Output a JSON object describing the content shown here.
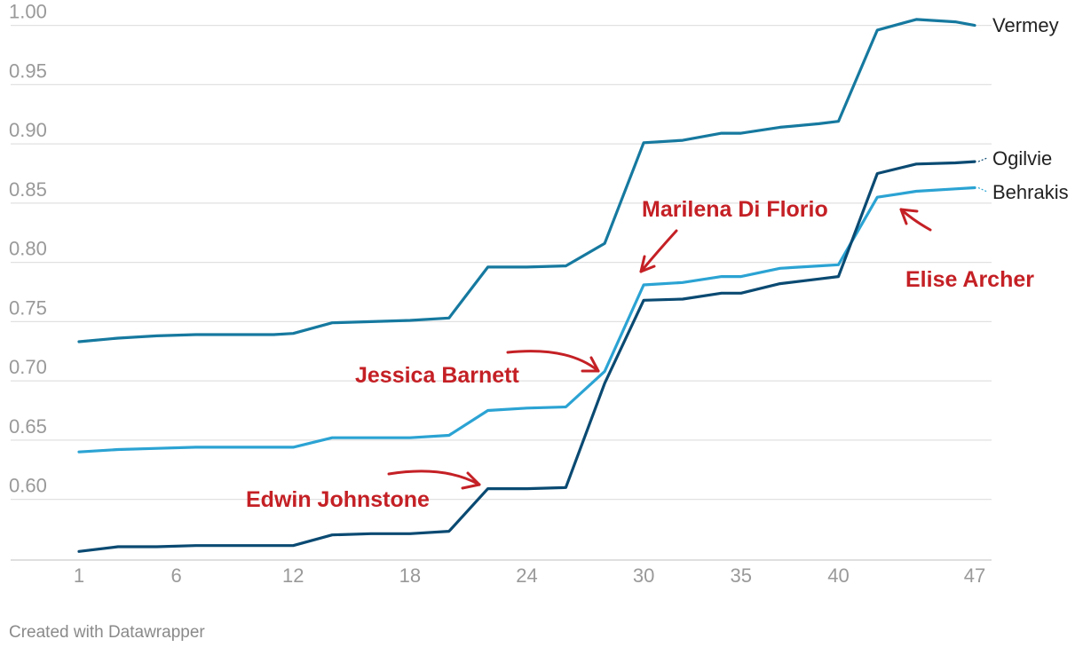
{
  "chart_data": {
    "type": "line",
    "x": [
      1,
      3,
      5,
      7,
      9,
      11,
      12,
      14,
      16,
      18,
      20,
      22,
      24,
      26,
      28,
      30,
      32,
      34,
      35,
      37,
      39,
      40,
      42,
      44,
      46,
      47
    ],
    "xticks": [
      1,
      6,
      12,
      18,
      24,
      30,
      35,
      40,
      47
    ],
    "xtick_labels": [
      "1",
      "6",
      "12",
      "18",
      "24",
      "30",
      "35",
      "40",
      "47"
    ],
    "yticks": [
      0.6,
      0.65,
      0.7,
      0.75,
      0.8,
      0.85,
      0.9,
      0.95,
      1.0
    ],
    "ytick_labels": [
      "0.60",
      "0.65",
      "0.70",
      "0.75",
      "0.80",
      "0.85",
      "0.90",
      "0.95",
      "1.00"
    ],
    "ylim": [
      0.555,
      1.005
    ],
    "grid": true,
    "series": [
      {
        "name": "Vermey",
        "color": "#16799f",
        "values": [
          0.733,
          0.736,
          0.738,
          0.739,
          0.739,
          0.739,
          0.74,
          0.749,
          0.75,
          0.751,
          0.753,
          0.796,
          0.796,
          0.797,
          0.816,
          0.901,
          0.903,
          0.909,
          0.909,
          0.914,
          0.917,
          0.919,
          0.996,
          1.005,
          1.003,
          1.0
        ]
      },
      {
        "name": "Ogilvie",
        "color": "#0a4a72",
        "values": [
          0.556,
          0.56,
          0.56,
          0.561,
          0.561,
          0.561,
          0.561,
          0.57,
          0.571,
          0.571,
          0.573,
          0.609,
          0.609,
          0.61,
          0.698,
          0.768,
          0.769,
          0.774,
          0.774,
          0.782,
          0.786,
          0.788,
          0.875,
          0.883,
          0.884,
          0.885
        ]
      },
      {
        "name": "Behrakis",
        "color": "#2ba3d3",
        "values": [
          0.64,
          0.642,
          0.643,
          0.644,
          0.644,
          0.644,
          0.644,
          0.652,
          0.652,
          0.652,
          0.654,
          0.675,
          0.677,
          0.678,
          0.708,
          0.781,
          0.783,
          0.788,
          0.788,
          0.795,
          0.797,
          0.798,
          0.855,
          0.86,
          0.862,
          0.863
        ]
      }
    ],
    "annotations": [
      {
        "text": "Marilena Di Florio",
        "x": 30,
        "y": 0.78
      },
      {
        "text": "Jessica Barnett",
        "x": 28,
        "y": 0.707
      },
      {
        "text": "Edwin Johnstone",
        "x": 22,
        "y": 0.609
      },
      {
        "text": "Elise Archer",
        "x": 42,
        "y": 0.855
      }
    ],
    "annotation_color": "#c42025"
  },
  "footer": "Created with Datawrapper"
}
